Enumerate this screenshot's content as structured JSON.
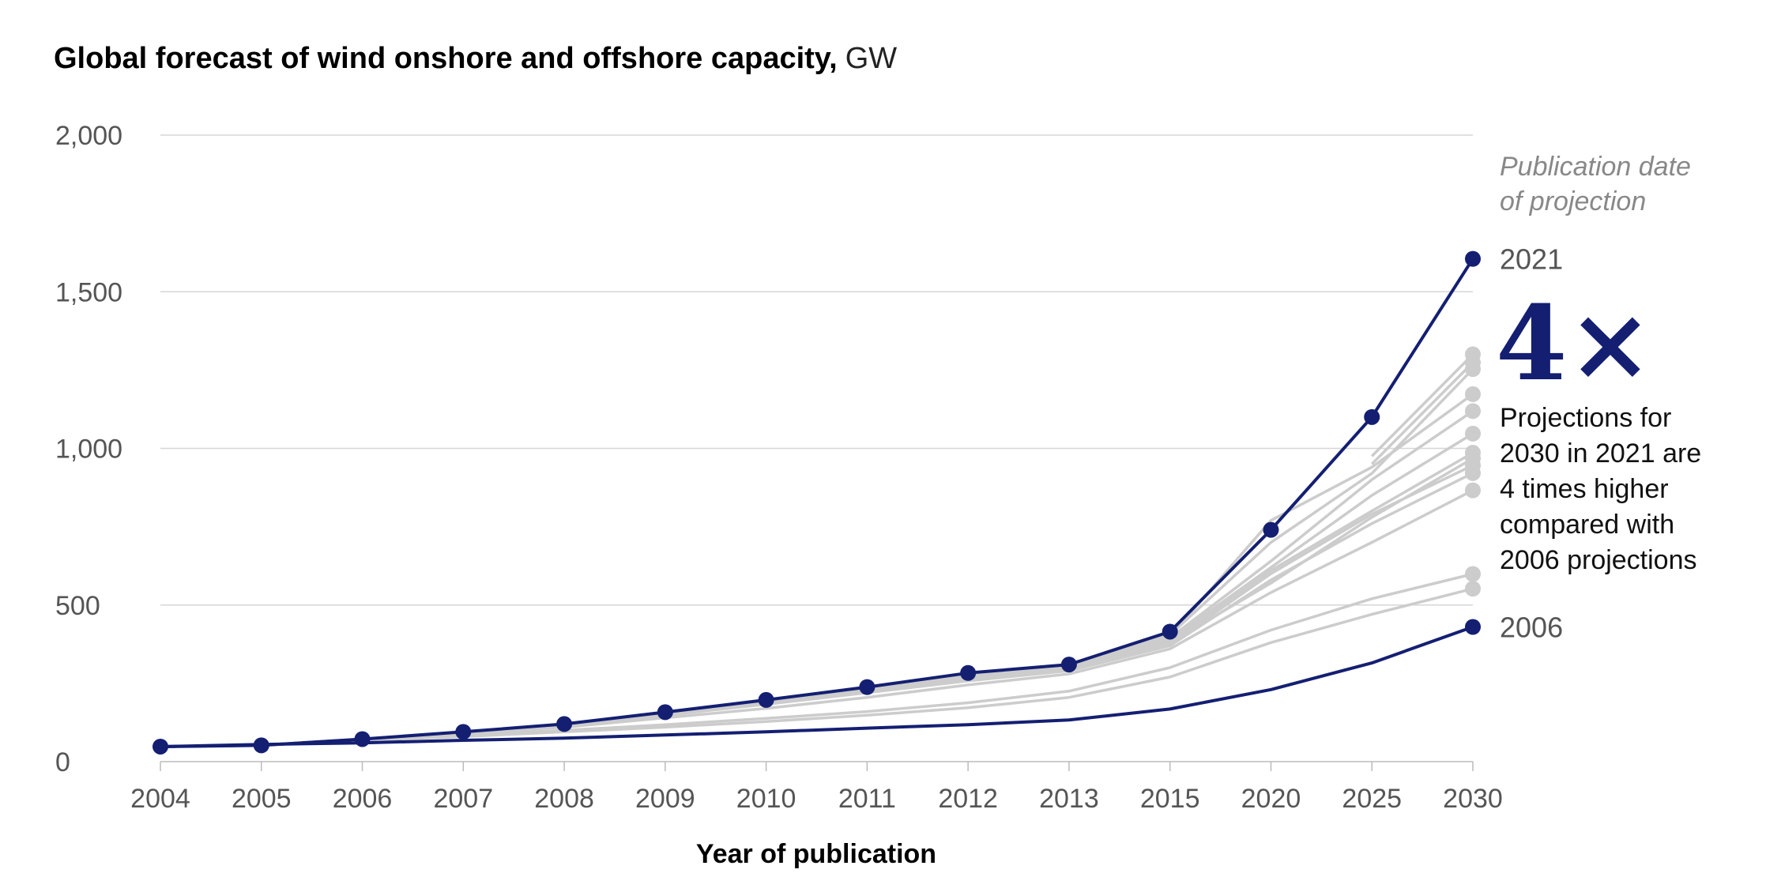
{
  "chart_data": {
    "type": "line",
    "title": "Global forecast of wind onshore and offshore capacity,",
    "title_unit": "GW",
    "xlabel": "Year of publication",
    "ylabel": "",
    "ylim": [
      0,
      2000
    ],
    "yticks": [
      0,
      500,
      1000,
      1500,
      2000
    ],
    "ytick_labels": [
      "0",
      "500",
      "1,000",
      "1,500",
      "2,000"
    ],
    "grid": true,
    "categories": [
      "2004",
      "2005",
      "2006",
      "2007",
      "2008",
      "2009",
      "2010",
      "2011",
      "2012",
      "2013",
      "2015",
      "2020",
      "2025",
      "2030"
    ],
    "legend_title_lines": [
      "Publication date",
      "of projection"
    ],
    "highlight_series": [
      {
        "name": "2021",
        "color": "#141f72",
        "markers": true,
        "values": [
          48,
          52,
          72,
          95,
          120,
          158,
          197,
          238,
          283,
          310,
          415,
          740,
          1100,
          1605
        ]
      },
      {
        "name": "2006",
        "color": "#141f72",
        "markers": false,
        "end_marker": true,
        "values": [
          48,
          55,
          60,
          68,
          75,
          85,
          95,
          107,
          118,
          133,
          168,
          230,
          315,
          430
        ]
      }
    ],
    "other_series_color": "#cccccc",
    "other_series": [
      {
        "values": [
          48,
          53,
          68,
          80,
          95,
          110,
          128,
          148,
          172,
          205,
          270,
          380,
          470,
          552
        ]
      },
      {
        "values": [
          48,
          53,
          70,
          85,
          100,
          118,
          138,
          160,
          188,
          225,
          300,
          420,
          520,
          599
        ]
      },
      {
        "values": [
          48,
          53,
          72,
          90,
          110,
          140,
          170,
          205,
          245,
          280,
          360,
          540,
          700,
          866
        ]
      },
      {
        "values": [
          48,
          52,
          72,
          92,
          114,
          148,
          183,
          220,
          258,
          290,
          370,
          580,
          760,
          921
        ]
      },
      {
        "values": [
          48,
          52,
          72,
          93,
          116,
          150,
          186,
          224,
          264,
          295,
          375,
          600,
          790,
          946
        ]
      },
      {
        "values": [
          48,
          52,
          72,
          93,
          116,
          151,
          188,
          226,
          266,
          297,
          380,
          570,
          780,
          968
        ]
      },
      {
        "values": [
          48,
          52,
          72,
          94,
          117,
          152,
          190,
          229,
          270,
          300,
          385,
          610,
          800,
          986
        ]
      },
      {
        "values": [
          48,
          52,
          72,
          94,
          118,
          154,
          192,
          232,
          274,
          303,
          390,
          620,
          850,
          1047
        ]
      },
      {
        "values": [
          48,
          52,
          72,
          94,
          118,
          155,
          194,
          234,
          278,
          306,
          395,
          640,
          900,
          1119
        ]
      },
      {
        "values": [
          48,
          52,
          72,
          95,
          119,
          156,
          195,
          236,
          280,
          308,
          400,
          770,
          940,
          1173
        ]
      },
      {
        "values": [
          48,
          52,
          72,
          95,
          119,
          157,
          196,
          237,
          282,
          309,
          405,
          700,
          920,
          1253
        ]
      },
      {
        "values": [
          null,
          null,
          null,
          null,
          null,
          null,
          null,
          null,
          null,
          null,
          null,
          null,
          950,
          1274
        ]
      },
      {
        "values": [
          null,
          null,
          null,
          null,
          null,
          null,
          null,
          null,
          null,
          null,
          null,
          null,
          975,
          1300
        ]
      }
    ],
    "annotation": {
      "big_text": "4×",
      "color": "#141f72",
      "lines": [
        "Projections for",
        "2030 in 2021 are",
        "4 times higher",
        "compared with",
        "2006 projections"
      ]
    }
  }
}
